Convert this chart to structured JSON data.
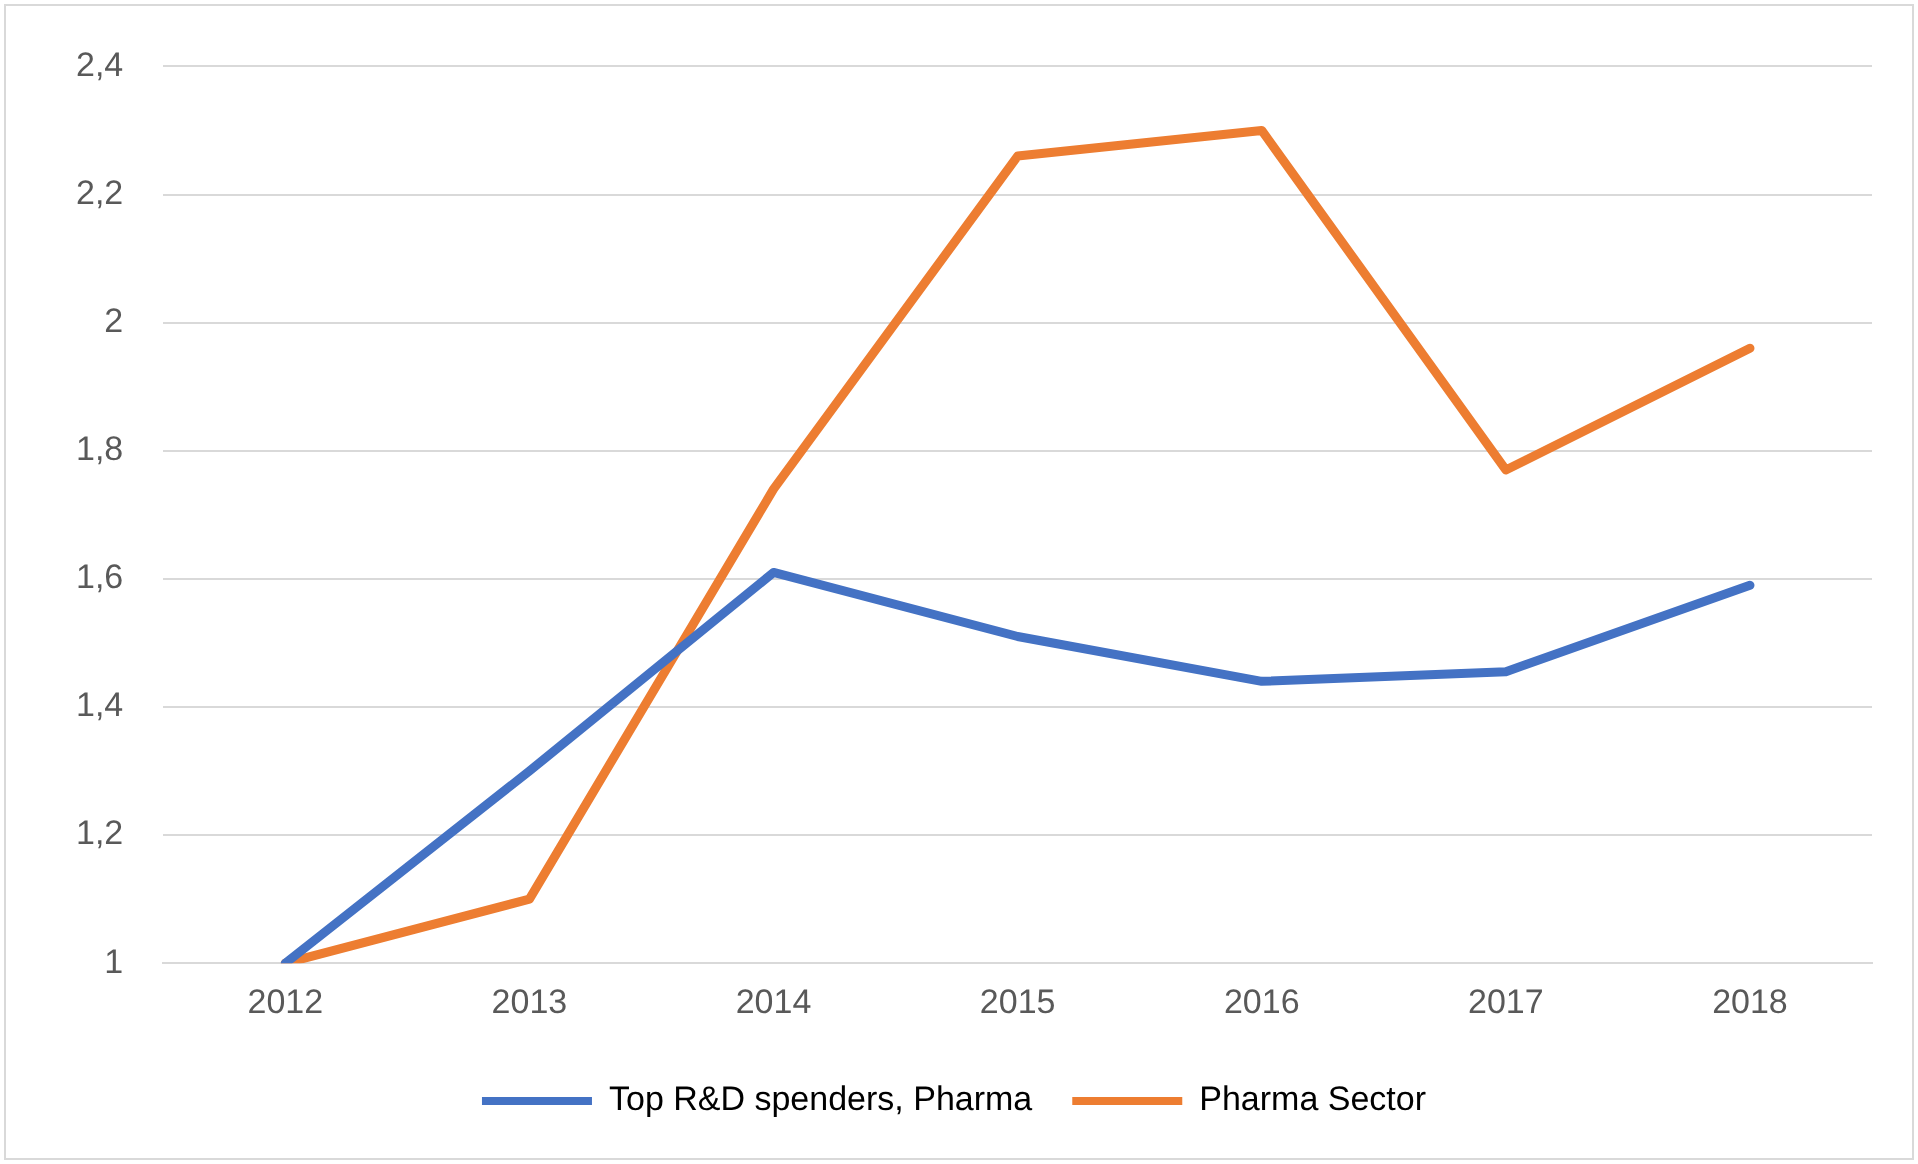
{
  "chart_data": {
    "type": "line",
    "categories": [
      "2012",
      "2013",
      "2014",
      "2015",
      "2016",
      "2017",
      "2018"
    ],
    "series": [
      {
        "name": "Top R&D spenders, Pharma",
        "color": "#4472c4",
        "values": [
          1,
          1.3,
          1.61,
          1.51,
          1.44,
          1.455,
          1.59
        ]
      },
      {
        "name": "Pharma Sector",
        "color": "#ed7d31",
        "values": [
          1,
          1.1,
          1.74,
          2.26,
          2.3,
          1.77,
          1.96
        ]
      }
    ],
    "ylim": [
      1,
      2.4
    ],
    "yticks": [
      1,
      {
        "value": 1.2,
        "label": "1,2"
      },
      {
        "value": 1.4,
        "label": "1,4"
      },
      {
        "value": 1.6,
        "label": "1,6"
      },
      {
        "value": 1.8,
        "label": "1,8"
      },
      2,
      {
        "value": 2.2,
        "label": "2,2"
      },
      {
        "value": 2.4,
        "label": "2,4"
      }
    ],
    "grid": "y",
    "legend": "bottom",
    "marker": "none",
    "line_style": "solid"
  }
}
